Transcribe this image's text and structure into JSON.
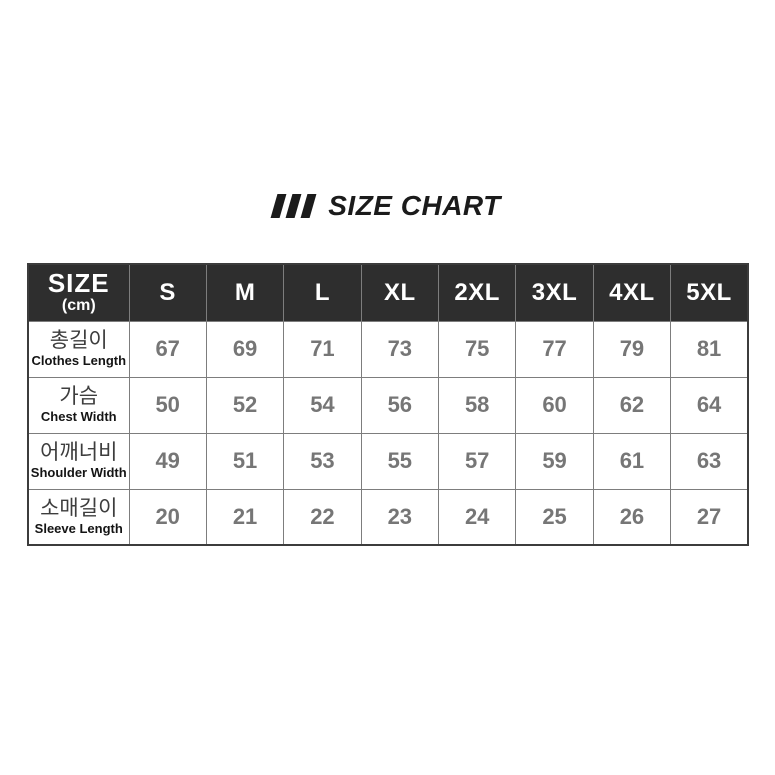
{
  "title": {
    "text": "SIZE CHART",
    "icon": "triple-slash-icon"
  },
  "table": {
    "corner_header": {
      "line1": "SIZE",
      "line2": "(cm)"
    },
    "sizes": [
      "S",
      "M",
      "L",
      "XL",
      "2XL",
      "3XL",
      "4XL",
      "5XL"
    ],
    "rows": [
      {
        "label_ko": "총길이",
        "label_en": "Clothes Length",
        "values": [
          67,
          69,
          71,
          73,
          75,
          77,
          79,
          81
        ]
      },
      {
        "label_ko": "가슴",
        "label_en": "Chest Width",
        "values": [
          50,
          52,
          54,
          56,
          58,
          60,
          62,
          64
        ]
      },
      {
        "label_ko": "어깨너비",
        "label_en": "Shoulder Width",
        "values": [
          49,
          51,
          53,
          55,
          57,
          59,
          61,
          63
        ]
      },
      {
        "label_ko": "소매길이",
        "label_en": "Sleeve Length",
        "values": [
          20,
          21,
          22,
          23,
          24,
          25,
          26,
          27
        ]
      }
    ],
    "colors": {
      "header_bg": "#2e2e2e",
      "header_text": "#ffffff",
      "value_text": "#767676",
      "inner_border": "#7d7d7d",
      "outer_border": "#3c3c3c"
    }
  },
  "chart_data": {
    "type": "table",
    "title": "SIZE CHART",
    "unit": "cm",
    "columns": [
      "S",
      "M",
      "L",
      "XL",
      "2XL",
      "3XL",
      "4XL",
      "5XL"
    ],
    "rows": [
      {
        "measure_ko": "총길이",
        "measure_en": "Clothes Length",
        "values": [
          67,
          69,
          71,
          73,
          75,
          77,
          79,
          81
        ]
      },
      {
        "measure_ko": "가슴",
        "measure_en": "Chest Width",
        "values": [
          50,
          52,
          54,
          56,
          58,
          60,
          62,
          64
        ]
      },
      {
        "measure_ko": "어깨너비",
        "measure_en": "Shoulder Width",
        "values": [
          49,
          51,
          53,
          55,
          57,
          59,
          61,
          63
        ]
      },
      {
        "measure_ko": "소매길이",
        "measure_en": "Sleeve Length",
        "values": [
          20,
          21,
          22,
          23,
          24,
          25,
          26,
          27
        ]
      }
    ]
  }
}
